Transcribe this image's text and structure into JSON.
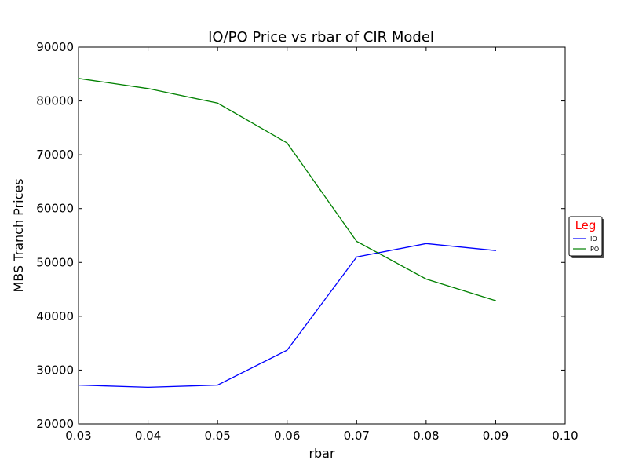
{
  "chart_data": {
    "type": "line",
    "title": "IO/PO Price vs rbar of CIR Model",
    "xlabel": "rbar",
    "ylabel": "MBS Tranch Prices",
    "xlim": [
      0.03,
      0.1
    ],
    "ylim": [
      20000,
      90000
    ],
    "x_ticks": [
      "0.03",
      "0.04",
      "0.05",
      "0.06",
      "0.07",
      "0.08",
      "0.09",
      "0.10"
    ],
    "y_ticks": [
      "20000",
      "30000",
      "40000",
      "50000",
      "60000",
      "70000",
      "80000",
      "90000"
    ],
    "x": [
      0.03,
      0.04,
      0.05,
      0.06,
      0.07,
      0.08,
      0.09
    ],
    "series": [
      {
        "name": "IO",
        "color": "#0000ff",
        "values": [
          27200,
          26800,
          27200,
          33700,
          51000,
          53500,
          52200
        ]
      },
      {
        "name": "PO",
        "color": "#008000",
        "values": [
          84200,
          82300,
          79600,
          72200,
          53900,
          46900,
          42900
        ]
      }
    ],
    "legend": {
      "title": "Leg",
      "title_color": "#ff0000",
      "placement": "outside-right"
    },
    "grid": false
  }
}
